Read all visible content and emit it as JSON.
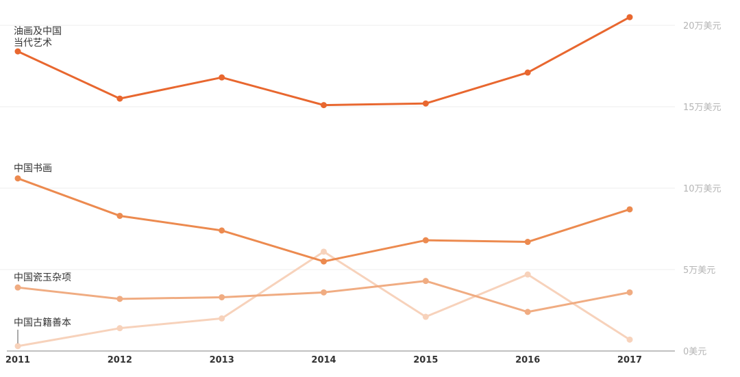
{
  "chart_data": {
    "type": "line",
    "x": [
      "2011",
      "2012",
      "2013",
      "2014",
      "2015",
      "2016",
      "2017"
    ],
    "ylim": [
      0,
      200000
    ],
    "yticks": [
      {
        "value": 0,
        "label": "0美元"
      },
      {
        "value": 50000,
        "label": "5万美元"
      },
      {
        "value": 100000,
        "label": "10万美元"
      },
      {
        "value": 150000,
        "label": "15万美元"
      },
      {
        "value": 200000,
        "label": "20万美元"
      }
    ],
    "series": [
      {
        "name": "油画及中国当代艺术",
        "label_lines": [
          "油画及中国",
          "当代艺术"
        ],
        "color": "#e8672f",
        "values": [
          184000,
          155000,
          168000,
          151000,
          152000,
          171000,
          205000
        ]
      },
      {
        "name": "中国书画",
        "label_lines": [
          "中国书画"
        ],
        "color": "#ec8a4f",
        "values": [
          106000,
          83000,
          74000,
          55000,
          68000,
          67000,
          87000
        ]
      },
      {
        "name": "中国瓷玉杂项",
        "label_lines": [
          "中国瓷玉杂项"
        ],
        "color": "#f0ac82",
        "values": [
          39000,
          32000,
          33000,
          36000,
          43000,
          24000,
          36000
        ]
      },
      {
        "name": "中国古籍善本",
        "label_lines": [
          "中国古籍善本"
        ],
        "color": "#f7d2bb",
        "values": [
          3000,
          14000,
          20000,
          61000,
          21000,
          47000,
          7000
        ]
      }
    ]
  }
}
